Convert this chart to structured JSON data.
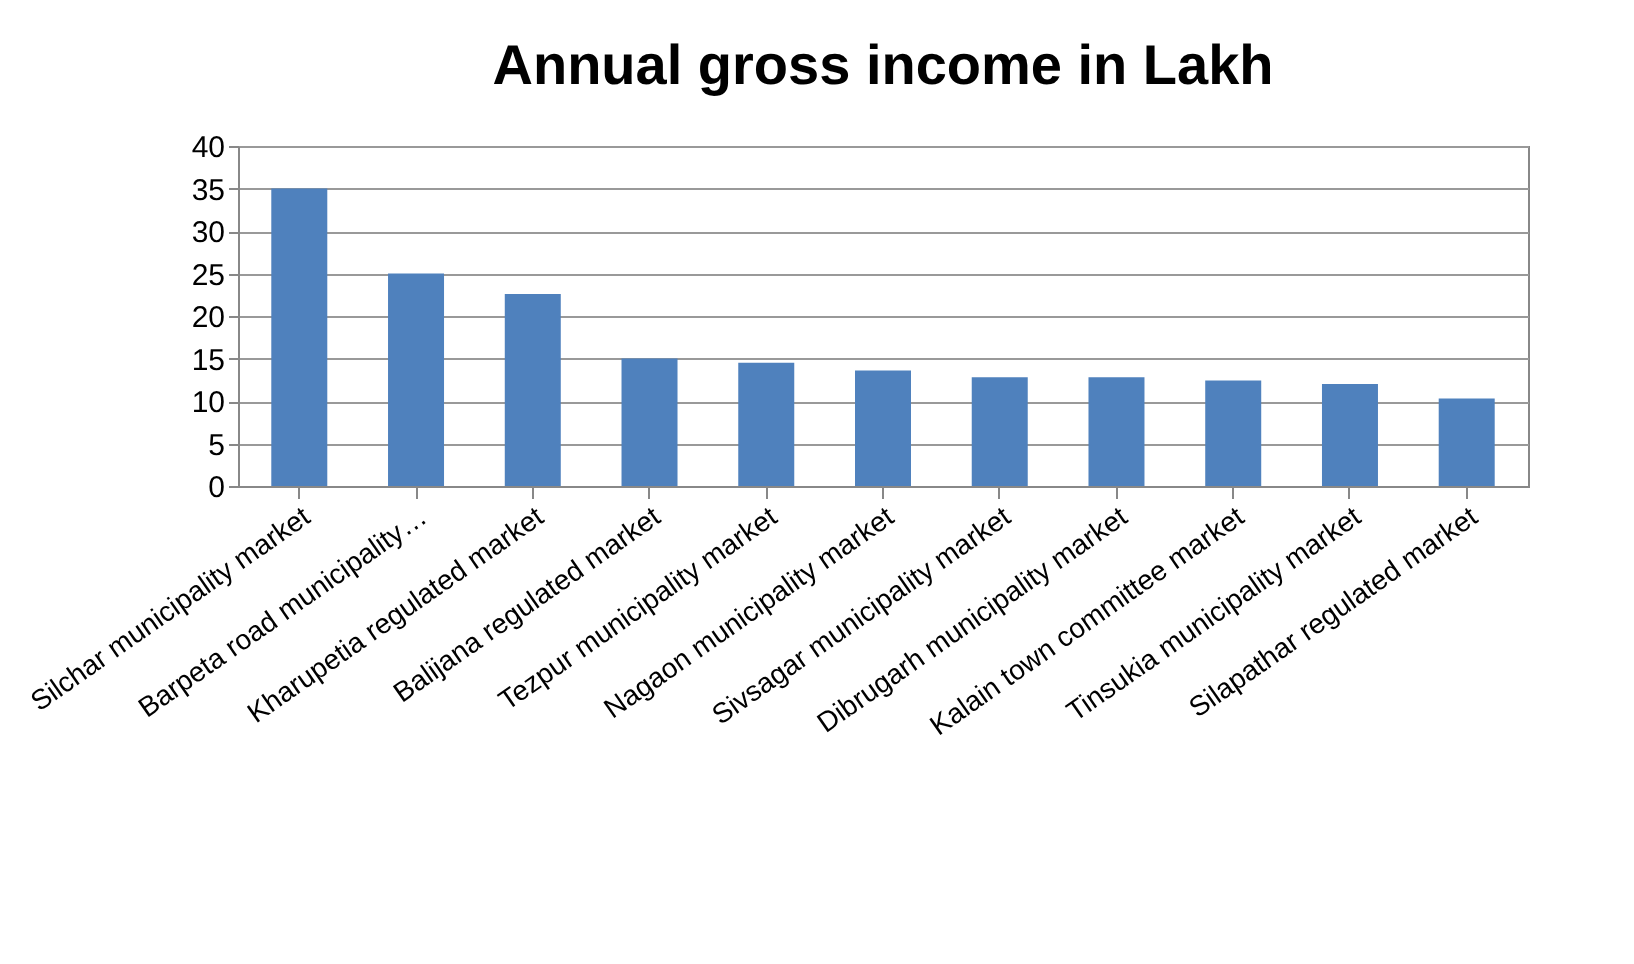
{
  "chart_data": {
    "type": "bar",
    "title": "Annual gross income in Lakh",
    "categories": [
      "Silchar municipality market",
      "Barpeta road municipality…",
      "Kharupetia regulated market",
      "Balijana regulated  market",
      "Tezpur municipality market",
      "Nagaon municipality market",
      "Sivsagar municipality market",
      "Dibrugarh municipality market",
      "Kalain town committee market",
      "Tinsukia municipality market",
      "Silapathar regulated  market"
    ],
    "values": [
      35,
      25,
      22.6,
      15,
      14.5,
      13.6,
      12.8,
      12.8,
      12.4,
      12,
      10.3
    ],
    "color": "#4f81bd",
    "ylim": [
      0,
      40
    ],
    "yticks": [
      0,
      5,
      10,
      15,
      20,
      25,
      30,
      35,
      40
    ],
    "grid": "y"
  }
}
